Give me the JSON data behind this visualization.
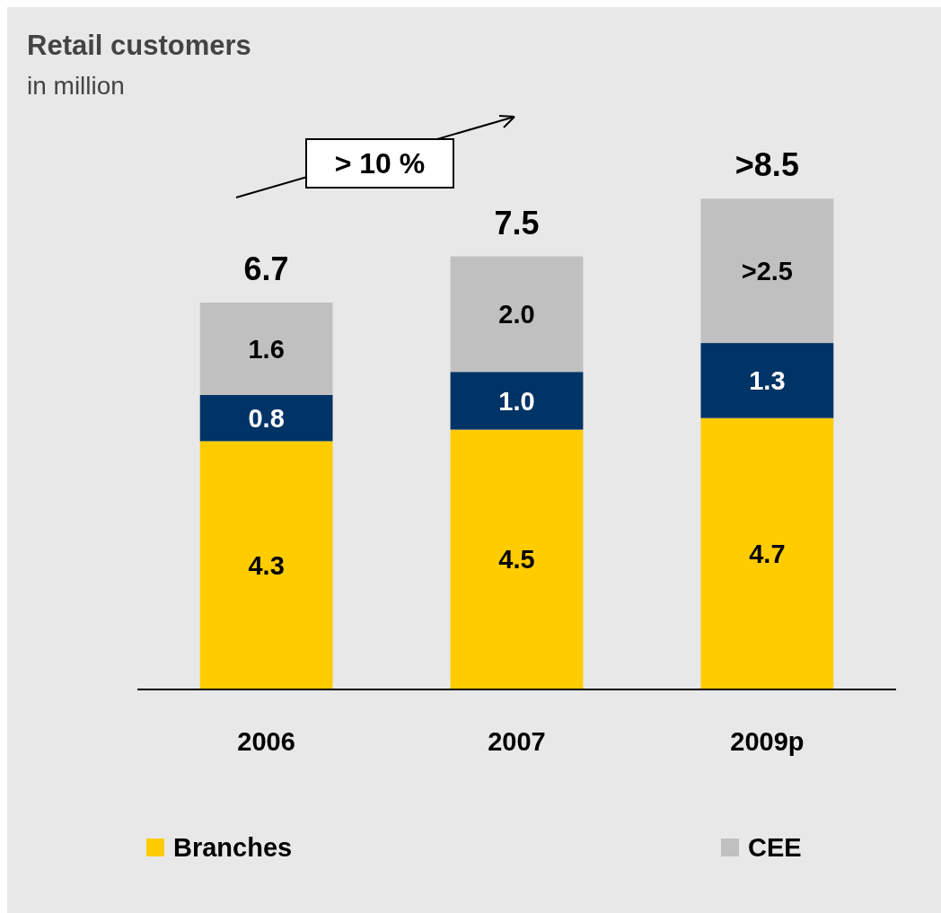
{
  "chart_data": {
    "type": "bar",
    "stacked": true,
    "title": "Retail customers",
    "subtitle": "in million",
    "categories": [
      "2006",
      "2007",
      "2009p"
    ],
    "series": [
      {
        "name": "Branches",
        "color": "#ffcc00",
        "values": [
          4.3,
          4.5,
          4.7
        ],
        "value_labels": [
          "4.3",
          "4.5",
          "4.7"
        ]
      },
      {
        "color": "#003366",
        "values": [
          0.8,
          1.0,
          1.3
        ],
        "value_labels": [
          "0.8",
          "1.0",
          "1.3"
        ]
      },
      {
        "name": "CEE",
        "color": "#c0c0c0",
        "values": [
          1.6,
          2.0,
          2.5
        ],
        "value_labels": [
          "1.6",
          "2.0",
          ">2.5"
        ]
      }
    ],
    "totals": [
      "6.7",
      "7.5",
      ">8.5"
    ],
    "annotations": [
      "> 10 %"
    ],
    "legend": "bottom"
  }
}
